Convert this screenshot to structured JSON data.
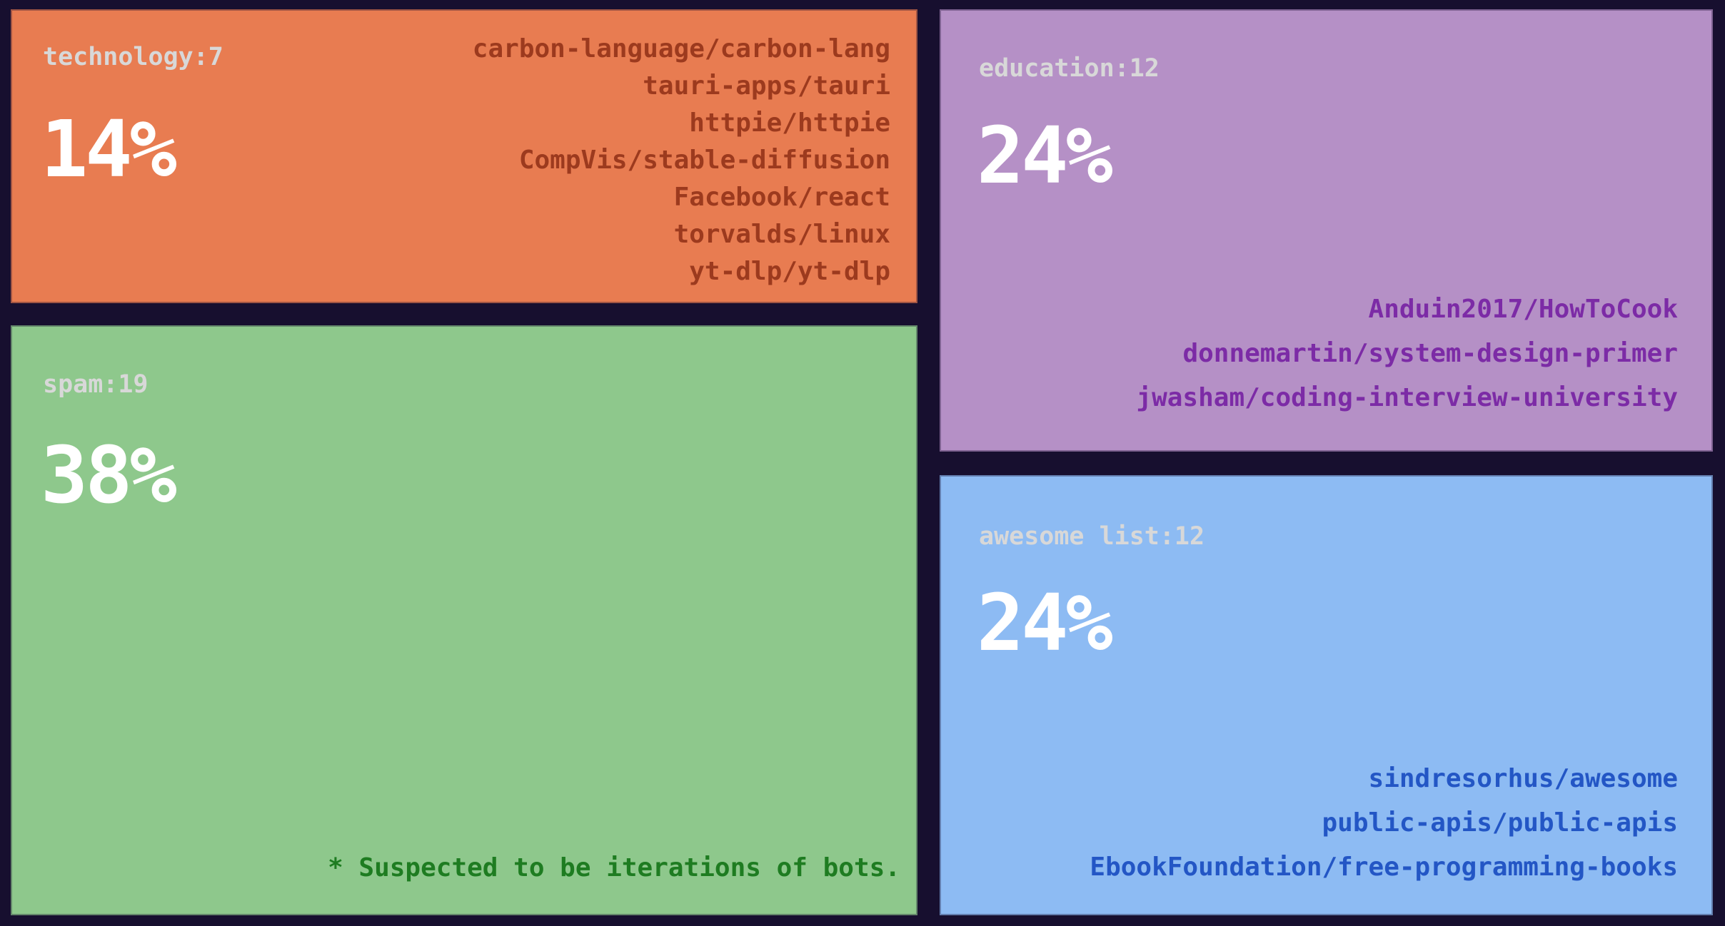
{
  "background_color": "#170f2f",
  "theme": {
    "label_color": "#d8d8d8",
    "percent_color": "#ffffff"
  },
  "chart_data": {
    "type": "treemap",
    "title": "",
    "legend": "none",
    "total_count": 50,
    "tiles": [
      {
        "id": "technology",
        "label": "technology:7",
        "category": "technology",
        "count": 7,
        "percent_label": "14%",
        "percent_value": 14,
        "fill_color": "#e87c51",
        "repo_text_color": "#9c3a1e",
        "repos": [
          "carbon-language/carbon-lang",
          "tauri-apps/tauri",
          "httpie/httpie",
          "CompVis/stable-diffusion",
          "Facebook/react",
          "torvalds/linux",
          "yt-dlp/yt-dlp"
        ]
      },
      {
        "id": "spam",
        "label": "spam:19",
        "category": "spam",
        "count": 19,
        "percent_label": "38%",
        "percent_value": 38,
        "fill_color": "#8ec88c",
        "note_text_color": "#1e7c21",
        "note": "* Suspected to be iterations of bots."
      },
      {
        "id": "education",
        "label": "education:12",
        "category": "education",
        "count": 12,
        "percent_label": "24%",
        "percent_value": 24,
        "fill_color": "#b590c6",
        "repo_text_color": "#7c2ba6",
        "repos": [
          "Anduin2017/HowToCook",
          "donnemartin/system-design-primer",
          "jwasham/coding-interview-university"
        ]
      },
      {
        "id": "awesome-list",
        "label": "awesome list:12",
        "category": "awesome list",
        "count": 12,
        "percent_label": "24%",
        "percent_value": 24,
        "fill_color": "#8dbbf3",
        "repo_text_color": "#2356c5",
        "repos": [
          "sindresorhus/awesome",
          "public-apis/public-apis",
          "EbookFoundation/free-programming-books"
        ]
      }
    ]
  }
}
